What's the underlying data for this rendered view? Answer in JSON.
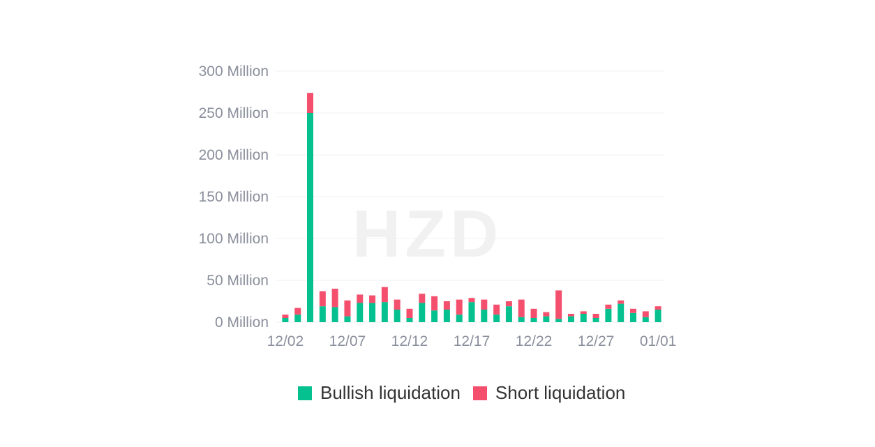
{
  "watermark": "HZD",
  "chart_data": {
    "type": "bar",
    "stacked": true,
    "categories": [
      "12/02",
      "12/03",
      "12/04",
      "12/05",
      "12/06",
      "12/07",
      "12/08",
      "12/09",
      "12/10",
      "12/11",
      "12/12",
      "12/13",
      "12/14",
      "12/15",
      "12/16",
      "12/17",
      "12/18",
      "12/19",
      "12/20",
      "12/21",
      "12/22",
      "12/23",
      "12/24",
      "12/25",
      "12/26",
      "12/27",
      "12/28",
      "12/29",
      "12/30",
      "12/31",
      "01/01"
    ],
    "x_tick_labels": [
      "12/02",
      "12/07",
      "12/12",
      "12/17",
      "12/22",
      "12/27",
      "01/01"
    ],
    "y_tick_labels": [
      "0 Million",
      "50 Million",
      "100 Million",
      "150 Million",
      "200 Million",
      "250 Million",
      "300 Million"
    ],
    "ylim": [
      0,
      300
    ],
    "y_unit": "Million",
    "series": [
      {
        "name": "Bullish liquidation",
        "color": "#05c08f",
        "values": [
          5,
          9,
          250,
          19,
          18,
          7,
          23,
          23,
          24,
          15,
          5,
          23,
          14,
          15,
          9,
          24,
          15,
          9,
          19,
          6,
          5,
          7,
          4,
          7,
          10,
          5,
          16,
          22,
          11,
          6,
          15
        ]
      },
      {
        "name": "Short liquidation",
        "color": "#f4506e",
        "values": [
          4,
          8,
          24,
          18,
          22,
          19,
          10,
          9,
          18,
          12,
          11,
          11,
          17,
          10,
          18,
          5,
          12,
          12,
          6,
          21,
          11,
          5,
          34,
          3,
          3,
          5,
          5,
          4,
          5,
          7,
          4
        ]
      }
    ],
    "grid": true,
    "legend_position": "bottom-center"
  }
}
